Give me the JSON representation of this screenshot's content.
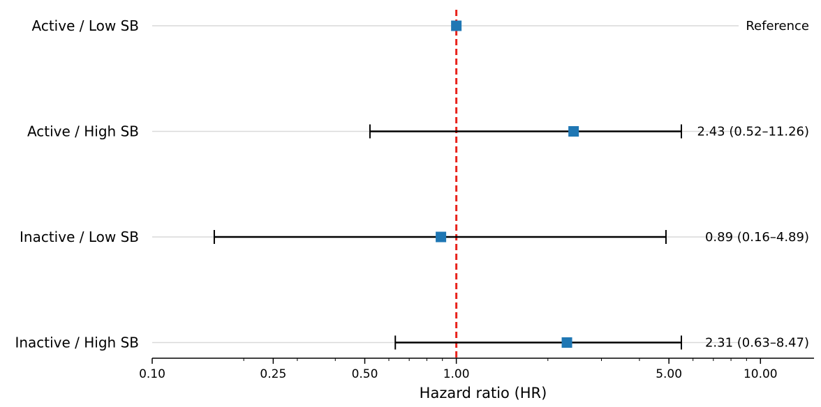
{
  "chart_data": {
    "type": "forest",
    "xlabel": "Hazard ratio (HR)",
    "x_scale": "log",
    "xlim": [
      0.1,
      15
    ],
    "xticks": [
      0.1,
      0.25,
      0.5,
      1.0,
      5.0,
      10.0
    ],
    "xtick_labels": [
      "0.10",
      "0.25",
      "0.50",
      "1.00",
      "5.00",
      "10.00"
    ],
    "reference_line": {
      "x": 1.0,
      "style": "dashed",
      "color": "#e8231c"
    },
    "marker_color": "#1f77b4",
    "ci_color": "#000000",
    "guide_line_color": "#d9d9d9",
    "rows": [
      {
        "label": "Active / Low SB",
        "hr": 1.0,
        "lo": null,
        "hi": null,
        "annotation": "Reference"
      },
      {
        "label": "Active / High SB",
        "hr": 2.43,
        "lo": 0.52,
        "hi": 11.26,
        "annotation": "2.43 (0.52–11.26)"
      },
      {
        "label": "Inactive / Low SB",
        "hr": 0.89,
        "lo": 0.16,
        "hi": 4.89,
        "annotation": "0.89 (0.16–4.89)"
      },
      {
        "label": "Inactive / High SB",
        "hr": 2.31,
        "lo": 0.63,
        "hi": 8.47,
        "annotation": "2.31 (0.63–8.47)"
      }
    ]
  }
}
